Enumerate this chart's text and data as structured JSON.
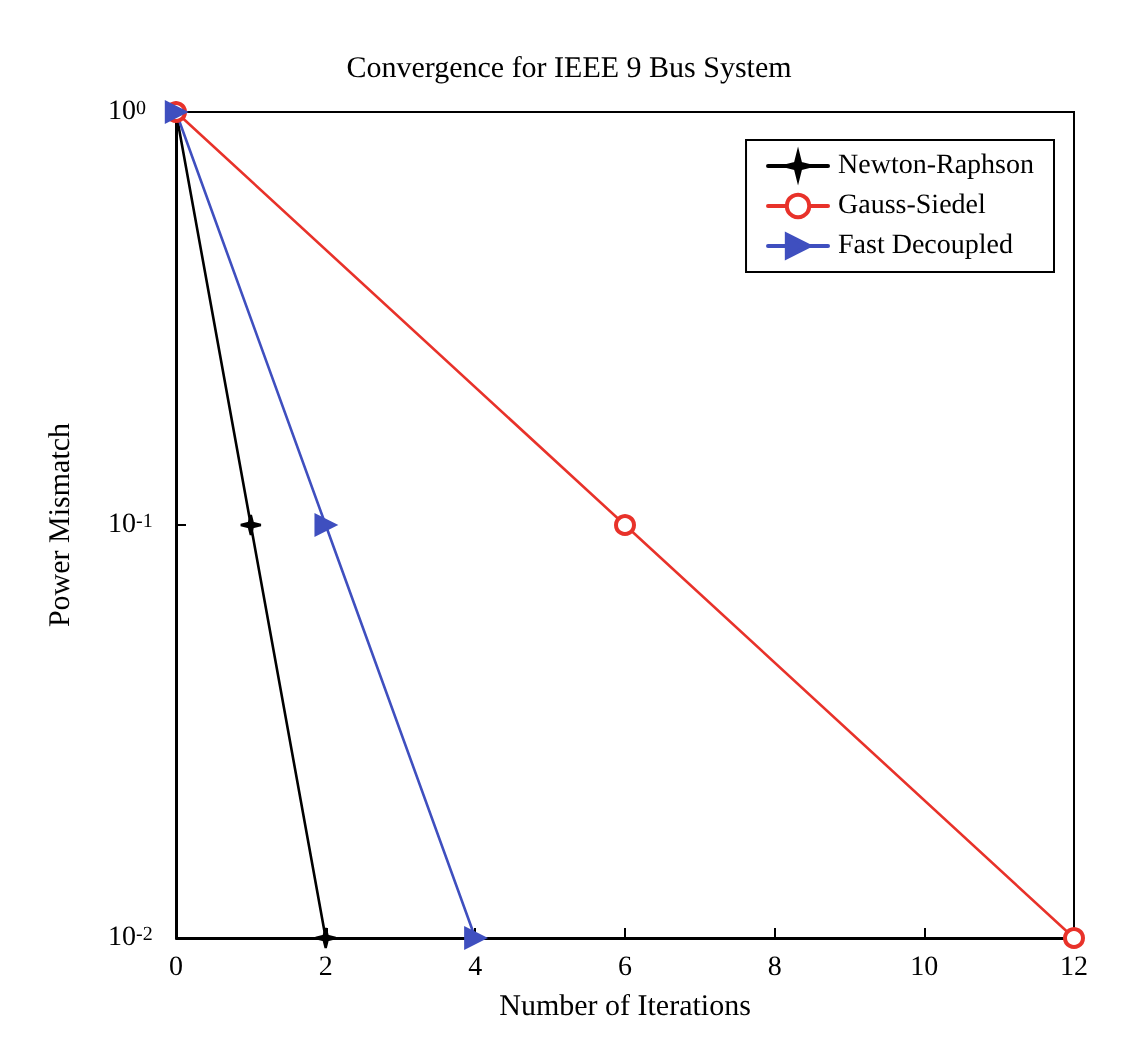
{
  "chart_data": {
    "type": "line",
    "title": "Convergence for IEEE 9 Bus System",
    "xlabel": "Number of Iterations",
    "ylabel": "Power Mismatch",
    "series": [
      {
        "name": "Newton-Raphson",
        "color": "#000000",
        "marker": "star",
        "x": [
          0,
          1,
          2
        ],
        "values": [
          1,
          0.1,
          0.01
        ]
      },
      {
        "name": "Gauss-Siedel",
        "color": "#e8322a",
        "marker": "circle",
        "x": [
          0,
          6,
          12
        ],
        "values": [
          1,
          0.1,
          0.01
        ]
      },
      {
        "name": "Fast Decoupled",
        "color": "#3f4fbf",
        "marker": "triangle",
        "x": [
          0,
          2,
          4
        ],
        "values": [
          1,
          0.1,
          0.01
        ]
      }
    ],
    "xlim": [
      0,
      12
    ],
    "xticks": [
      0,
      2,
      4,
      6,
      8,
      10,
      12
    ],
    "ylim": [
      0.01,
      1
    ],
    "yticks": [
      {
        "value": 0.01,
        "label": "10$^{-2}$"
      },
      {
        "value": 0.1,
        "label": "10$^{-1}$"
      },
      {
        "value": 1,
        "label": "10$^{0}$"
      }
    ],
    "log": "y",
    "grid": false,
    "legend": "top right",
    "line_style": "solid"
  }
}
